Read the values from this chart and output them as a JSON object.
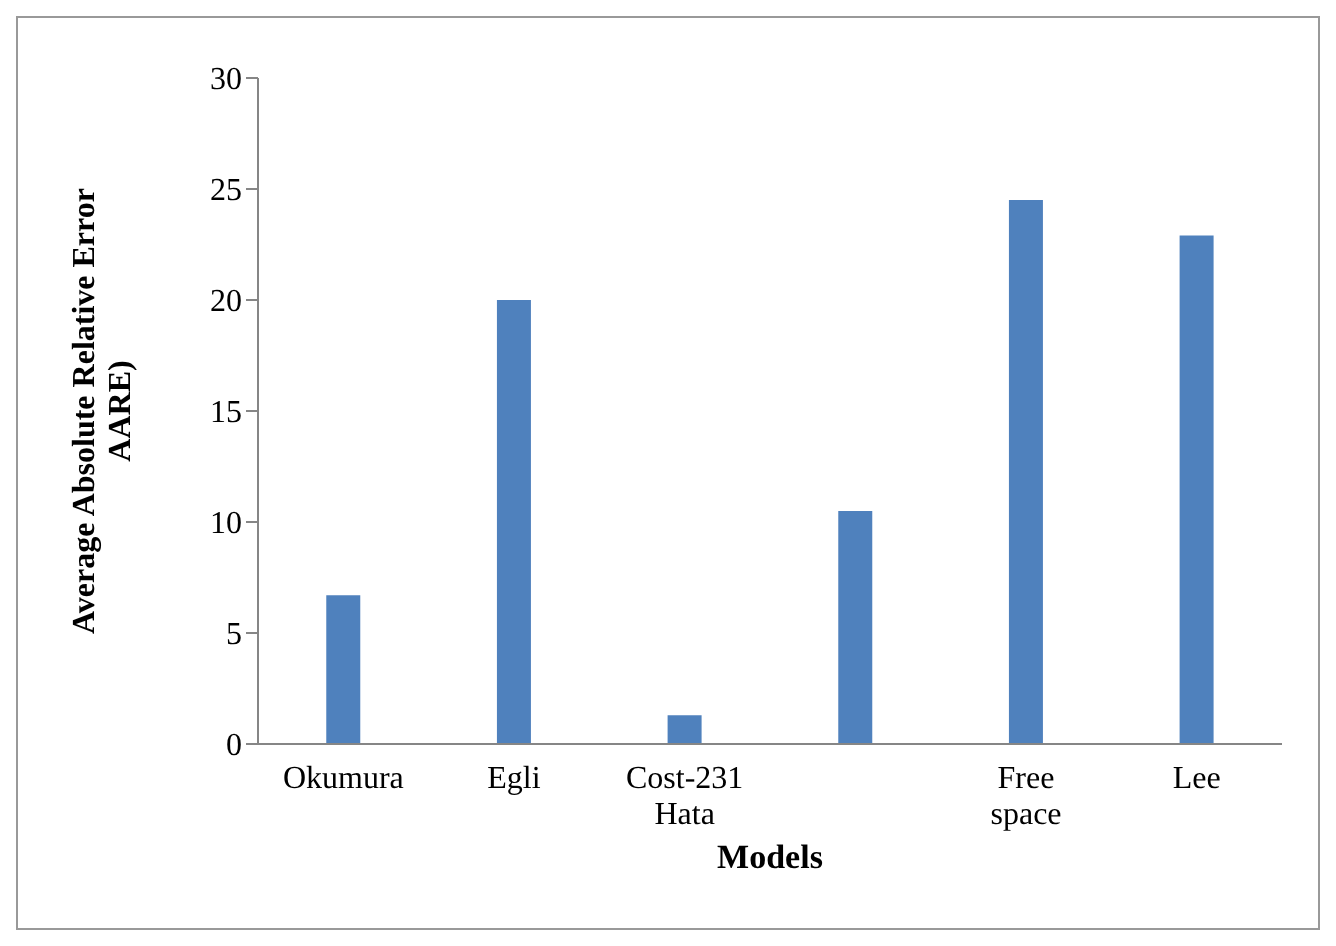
{
  "chart_data": {
    "type": "bar",
    "xlabel": "Models",
    "ylabel": "Average Absolute Relative Error AARE)",
    "categories": [
      "Okumura",
      "Egli",
      "Cost-231 Hata",
      null,
      "Free space",
      "Lee"
    ],
    "values": [
      6.7,
      20,
      1.3,
      10.5,
      24.5,
      22.9
    ],
    "color": "#4f81bd",
    "ylim": [
      0,
      30
    ],
    "yticks": [
      0,
      5,
      10,
      15,
      20,
      25,
      30
    ]
  }
}
